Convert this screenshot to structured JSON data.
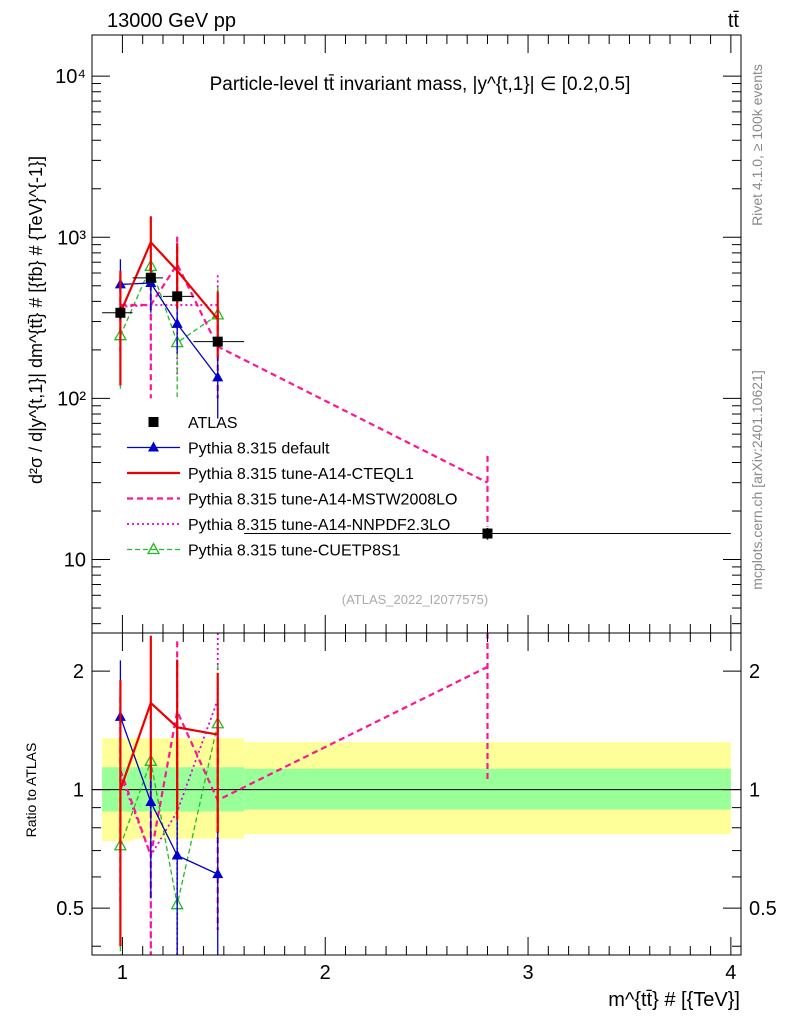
{
  "header": {
    "beam_label": "13000 GeV pp",
    "process_label": "tt̄",
    "rivet_label": "Rivet 4.1.0, ≥ 100k events",
    "mcplots_label": "mcplots.cern.ch [arXiv:2401.10621]",
    "analysis_id": "(ATLAS_2022_I2077575)"
  },
  "colors": {
    "data": "#000000",
    "default": "#0000cc",
    "cteql1": "#ee0000",
    "mstw": "#ff1493",
    "nnpdf": "#dd00dd",
    "cuetp": "#22bb22",
    "band_outer": "#ffff99",
    "band_inner": "#99ff99"
  },
  "chart_data": [
    {
      "type": "line",
      "panel": "main",
      "title": "Particle-level tt̄ invariant mass, |y^{t,1}| ∈ [0.2,0.5]",
      "ylabel": "d²σ / d|y^{t,1}| dm^{tt̄} # [{fb} # {TeV}^{-1}]",
      "yscale": "log",
      "xlim": [
        0.85,
        4.05
      ],
      "ylim": [
        3.5,
        18000
      ],
      "yticks": [
        {
          "value": 10,
          "label": "10"
        },
        {
          "value": 100,
          "label": "10²"
        },
        {
          "value": 1000,
          "label": "10³"
        },
        {
          "value": 10000,
          "label": "10⁴"
        }
      ],
      "bins": [
        [
          0.9,
          1.05
        ],
        [
          1.05,
          1.2
        ],
        [
          1.2,
          1.35
        ],
        [
          1.35,
          1.6
        ],
        [
          1.6,
          4.0
        ]
      ],
      "x": [
        0.99,
        1.14,
        1.27,
        1.47,
        2.8
      ],
      "series": [
        {
          "name": "ATLAS",
          "key": "data",
          "values": [
            340,
            560,
            430,
            225,
            14.5
          ],
          "err_up": [
            30,
            40,
            30,
            15,
            1.2
          ],
          "err_down": [
            30,
            40,
            30,
            15,
            1.2
          ]
        },
        {
          "name": "Pythia 8.315 default",
          "key": "default",
          "values": [
            510,
            520,
            290,
            135,
            null
          ],
          "err_up": [
            220,
            200,
            110,
            60,
            null
          ],
          "err_down": [
            200,
            180,
            100,
            60,
            null
          ]
        },
        {
          "name": "Pythia 8.315 tune-A14-CTEQL1",
          "key": "cteql1",
          "values": [
            340,
            930,
            620,
            310,
            null
          ],
          "err_up": [
            280,
            420,
            300,
            150,
            null
          ],
          "err_down": [
            220,
            330,
            260,
            130,
            null
          ]
        },
        {
          "name": "Pythia 8.315 tune-A14-MSTW2008LO",
          "key": "mstw",
          "values": [
            380,
            380,
            680,
            210,
            30
          ],
          "err_up": [
            190,
            300,
            330,
            120,
            14
          ],
          "err_down": [
            190,
            280,
            300,
            110,
            14
          ]
        },
        {
          "name": "Pythia 8.315 tune-A14-NNPDF2.3LO",
          "key": "nnpdf",
          "values": [
            370,
            380,
            380,
            380,
            null
          ],
          "err_up": [
            220,
            260,
            270,
            200,
            null
          ],
          "err_down": [
            200,
            230,
            240,
            180,
            null
          ]
        },
        {
          "name": "Pythia 8.315 tune-CUETP8S1",
          "key": "cuetp",
          "values": [
            245,
            660,
            222,
            330,
            null
          ],
          "err_up": [
            130,
            300,
            120,
            160,
            null
          ],
          "err_down": [
            130,
            280,
            120,
            150,
            null
          ]
        }
      ]
    },
    {
      "type": "line",
      "panel": "ratio",
      "xlabel": "m^{tt̄} # [{TeV}]",
      "ylabel": "Ratio to ATLAS",
      "yscale": "log",
      "xlim": [
        0.85,
        4.05
      ],
      "ylim": [
        0.38,
        2.5
      ],
      "yticks": [
        {
          "value": 0.5,
          "label": "0.5"
        },
        {
          "value": 1,
          "label": "1"
        },
        {
          "value": 2,
          "label": "2"
        }
      ],
      "xticks": [
        {
          "value": 1,
          "label": "1"
        },
        {
          "value": 2,
          "label": "2"
        },
        {
          "value": 3,
          "label": "3"
        },
        {
          "value": 4,
          "label": "4"
        }
      ],
      "band_bins": [
        [
          0.9,
          1.05
        ],
        [
          1.05,
          1.2
        ],
        [
          1.2,
          1.35
        ],
        [
          1.35,
          1.6
        ],
        [
          1.6,
          4.0
        ]
      ],
      "band_outer": [
        [
          0.74,
          1.35
        ],
        [
          0.75,
          1.35
        ],
        [
          0.75,
          1.35
        ],
        [
          0.75,
          1.35
        ],
        [
          0.77,
          1.32
        ]
      ],
      "band_inner": [
        [
          0.88,
          1.14
        ],
        [
          0.88,
          1.14
        ],
        [
          0.88,
          1.14
        ],
        [
          0.88,
          1.14
        ],
        [
          0.89,
          1.13
        ]
      ],
      "x": [
        0.99,
        1.14,
        1.27,
        1.47,
        2.8
      ],
      "series": [
        {
          "name": "Pythia 8.315 default",
          "key": "default",
          "values": [
            1.53,
            0.93,
            0.68,
            0.61,
            null
          ],
          "err_up": [
            0.6,
            0.4,
            0.3,
            0.3,
            null
          ],
          "err_down": [
            0.5,
            0.4,
            0.3,
            0.3,
            null
          ]
        },
        {
          "name": "Pythia 8.315 tune-A14-CTEQL1",
          "key": "cteql1",
          "values": [
            1.0,
            1.66,
            1.44,
            1.38,
            null
          ],
          "err_up": [
            0.9,
            0.8,
            0.7,
            0.6,
            null
          ],
          "err_down": [
            0.6,
            0.6,
            0.6,
            0.6,
            null
          ]
        },
        {
          "name": "Pythia 8.315 tune-A14-MSTW2008LO",
          "key": "mstw",
          "values": [
            1.12,
            0.68,
            1.58,
            0.94,
            2.05
          ],
          "err_up": [
            0.6,
            0.5,
            0.8,
            0.5,
            0.9
          ],
          "err_down": [
            0.6,
            0.5,
            0.7,
            0.5,
            1.0
          ]
        },
        {
          "name": "Pythia 8.315 tune-A14-NNPDF2.3LO",
          "key": "nnpdf",
          "values": [
            1.09,
            0.68,
            0.88,
            1.69,
            null
          ],
          "err_up": [
            0.7,
            0.5,
            0.6,
            0.9,
            null
          ],
          "err_down": [
            0.6,
            0.4,
            0.5,
            0.8,
            null
          ]
        },
        {
          "name": "Pythia 8.315 tune-CUETP8S1",
          "key": "cuetp",
          "values": [
            0.72,
            1.18,
            0.51,
            1.47,
            null
          ],
          "err_up": [
            0.4,
            0.5,
            0.3,
            0.6,
            null
          ],
          "err_down": [
            0.4,
            0.5,
            0.2,
            0.6,
            null
          ]
        }
      ]
    }
  ]
}
